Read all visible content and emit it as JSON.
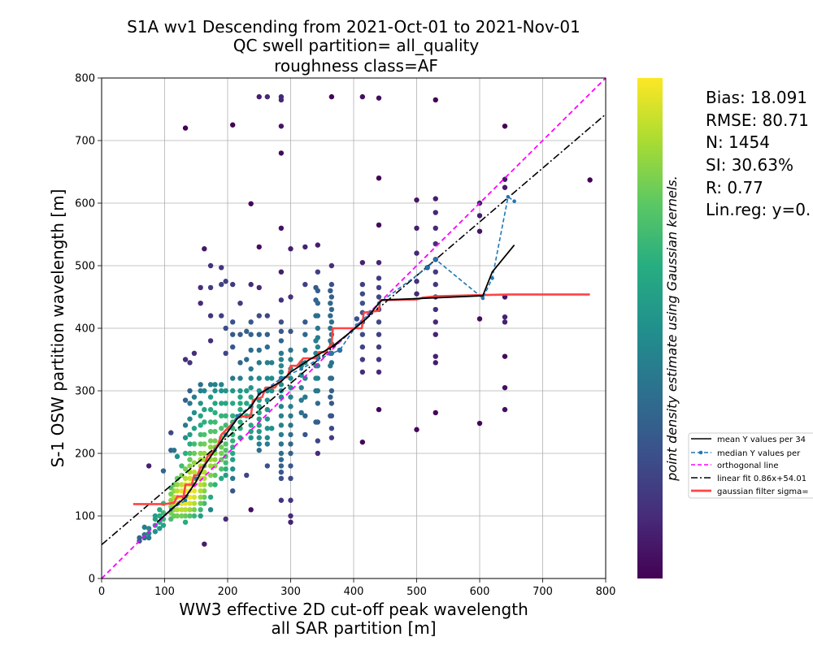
{
  "chart_data": {
    "type": "scatter",
    "title_lines": [
      "S1A wv1 Descending from 2021-Oct-01 to 2021-Nov-01",
      "QC swell partition= all_quality",
      "roughness class=AF"
    ],
    "xlabel_lines": [
      "WW3 effective 2D cut-off peak wavelength",
      "all SAR partition [m]"
    ],
    "ylabel": "S-1 OSW partition wavelength [m]",
    "xlim": [
      0,
      800
    ],
    "ylim": [
      0,
      800
    ],
    "xticks": [
      "0",
      "100",
      "200",
      "300",
      "400",
      "500",
      "600",
      "700",
      "800"
    ],
    "yticks": [
      "0",
      "100",
      "200",
      "300",
      "400",
      "500",
      "600",
      "700",
      "800"
    ],
    "grid": true,
    "colorbar_label": "point density estimate using Gaussian kernels.",
    "colorbar_colors": [
      "#440154",
      "#472c7a",
      "#3b518b",
      "#2c718e",
      "#21908d",
      "#27ad81",
      "#5cc863",
      "#aadc32",
      "#fde725"
    ],
    "stats": [
      "Bias: 18.091",
      "RMSE: 80.71",
      "N: 1454",
      "SI: 30.63%",
      "R: 0.77",
      "Lin.reg: y=0."
    ],
    "legend": [
      {
        "label": "mean Y values per 34",
        "color": "#000000",
        "style": "solid"
      },
      {
        "label": "median Y values per",
        "color": "#1f77b4",
        "style": "dashed-dot-marker"
      },
      {
        "label": "orthogonal line",
        "color": "#ff00ff",
        "style": "dashed"
      },
      {
        "label": "linear fit 0.86x+54.01",
        "color": "#000000",
        "style": "dashdot"
      },
      {
        "label": "gaussian filter sigma=",
        "color": "#ff4444",
        "style": "thick"
      }
    ],
    "linear_fit": {
      "slope": 0.86,
      "intercept": 54.01
    },
    "columns": [
      {
        "x": 60,
        "ys": [
          60,
          65
        ]
      },
      {
        "x": 68,
        "ys": [
          65,
          70,
          82
        ]
      },
      {
        "x": 75,
        "ys": [
          65,
          72,
          80,
          180
        ]
      },
      {
        "x": 85,
        "ys": [
          75,
          85,
          95,
          100
        ]
      },
      {
        "x": 92,
        "ys": [
          80,
          90,
          100,
          110
        ]
      },
      {
        "x": 98,
        "ys": [
          85,
          95,
          105,
          120,
          172
        ]
      },
      {
        "x": 110,
        "ys": [
          95,
          105,
          115,
          125,
          135,
          145,
          205,
          233
        ]
      },
      {
        "x": 115,
        "ys": [
          100,
          110,
          120,
          130,
          140,
          150,
          205
        ]
      },
      {
        "x": 120,
        "ys": [
          100,
          110,
          120,
          130,
          140,
          150,
          160,
          195
        ]
      },
      {
        "x": 127,
        "ys": [
          100,
          110,
          120,
          130,
          140,
          150,
          165,
          180
        ]
      },
      {
        "x": 133,
        "ys": [
          90,
          100,
          110,
          120,
          130,
          140,
          150,
          160,
          175,
          200,
          225,
          245,
          285,
          350,
          720
        ]
      },
      {
        "x": 140,
        "ys": [
          100,
          110,
          120,
          130,
          140,
          150,
          160,
          170,
          180,
          190,
          200,
          215,
          230,
          255,
          280,
          300,
          345
        ]
      },
      {
        "x": 147,
        "ys": [
          100,
          110,
          120,
          130,
          140,
          150,
          160,
          170,
          185,
          200,
          215,
          240,
          265,
          290,
          360
        ]
      },
      {
        "x": 157,
        "ys": [
          100,
          110,
          120,
          130,
          140,
          150,
          160,
          170,
          180,
          190,
          200,
          215,
          230,
          245,
          260,
          280,
          300,
          310,
          440,
          465
        ]
      },
      {
        "x": 163,
        "ys": [
          55,
          120,
          130,
          140,
          150,
          160,
          170,
          180,
          190,
          200,
          215,
          230,
          250,
          270,
          300,
          527
        ]
      },
      {
        "x": 173,
        "ys": [
          110,
          130,
          150,
          165,
          180,
          190,
          200,
          210,
          220,
          235,
          250,
          270,
          290,
          310,
          380,
          420,
          465,
          500
        ]
      },
      {
        "x": 180,
        "ys": [
          150,
          165,
          180,
          190,
          200,
          210,
          220,
          235,
          250,
          265,
          280,
          300,
          310
        ]
      },
      {
        "x": 190,
        "ys": [
          160,
          175,
          190,
          200,
          210,
          225,
          240,
          260,
          280,
          300,
          310,
          420,
          470,
          497
        ]
      },
      {
        "x": 197,
        "ys": [
          95,
          165,
          175,
          185,
          195,
          205,
          215,
          230,
          245,
          260,
          280,
          300,
          360,
          400,
          475
        ]
      },
      {
        "x": 208,
        "ys": [
          140,
          160,
          175,
          190,
          200,
          210,
          220,
          230,
          240,
          250,
          260,
          280,
          300,
          320,
          370,
          390,
          410,
          470,
          725
        ]
      },
      {
        "x": 220,
        "ys": [
          225,
          240,
          250,
          260,
          270,
          280,
          290,
          300,
          320,
          345,
          390,
          440
        ]
      },
      {
        "x": 230,
        "ys": [
          165,
          260,
          280,
          300,
          350,
          395
        ]
      },
      {
        "x": 237,
        "ys": [
          110,
          225,
          235,
          245,
          260,
          275,
          290,
          305,
          320,
          335,
          365,
          390,
          410,
          470,
          599
        ]
      },
      {
        "x": 250,
        "ys": [
          205,
          215,
          225,
          235,
          245,
          255,
          265,
          275,
          285,
          300,
          320,
          345,
          365,
          390,
          420,
          465,
          530,
          770
        ]
      },
      {
        "x": 263,
        "ys": [
          180,
          215,
          225,
          240,
          255,
          270,
          285,
          300,
          320,
          345,
          370,
          390,
          420,
          770
        ]
      },
      {
        "x": 270,
        "ys": [
          240,
          300,
          320,
          345
        ]
      },
      {
        "x": 285,
        "ys": [
          125,
          160,
          170,
          180,
          190,
          200,
          215,
          230,
          245,
          260,
          275,
          290,
          300,
          310,
          320,
          330,
          340,
          350,
          360,
          380,
          395,
          410,
          445,
          490,
          560,
          680,
          723,
          765,
          770
        ]
      },
      {
        "x": 300,
        "ys": [
          90,
          100,
          125,
          160,
          180,
          200,
          215,
          230,
          245,
          260,
          275,
          290,
          305,
          320,
          335,
          350,
          365,
          395,
          450,
          527
        ]
      },
      {
        "x": 317,
        "ys": [
          265,
          285,
          305,
          325,
          340,
          345
        ]
      },
      {
        "x": 323,
        "ys": [
          230,
          260,
          290,
          320,
          345,
          365,
          390,
          410,
          470,
          530
        ]
      },
      {
        "x": 340,
        "ys": [
          250,
          300,
          320,
          340,
          360,
          380,
          420,
          445,
          465
        ]
      },
      {
        "x": 343,
        "ys": [
          200,
          220,
          250,
          280,
          300,
          320,
          340,
          355,
          370,
          385,
          400,
          420,
          440,
          460,
          490,
          533
        ]
      },
      {
        "x": 363,
        "ys": [
          260,
          290,
          320,
          340,
          360,
          380,
          400,
          420,
          440,
          460
        ]
      },
      {
        "x": 365,
        "ys": [
          225,
          240,
          260,
          280,
          300,
          320,
          345,
          360,
          375,
          390,
          410,
          430,
          450,
          470,
          500,
          770
        ]
      },
      {
        "x": 378,
        "ys": [
          365
        ]
      },
      {
        "x": 405,
        "ys": [
          415
        ]
      },
      {
        "x": 414,
        "ys": [
          218,
          330,
          350,
          370,
          390,
          410,
          425,
          440,
          455,
          470,
          505,
          770
        ]
      },
      {
        "x": 427,
        "ys": [
          425
        ]
      },
      {
        "x": 440,
        "ys": [
          270,
          330,
          350,
          370,
          390,
          410,
          430,
          450,
          465,
          480,
          505,
          565,
          640,
          768
        ]
      },
      {
        "x": 500,
        "ys": [
          238,
          455,
          475,
          520,
          560,
          605
        ]
      },
      {
        "x": 517,
        "ys": [
          497
        ]
      },
      {
        "x": 530,
        "ys": [
          265,
          345,
          355,
          390,
          410,
          430,
          450,
          470,
          490,
          510,
          535,
          560,
          585,
          607,
          765
        ]
      },
      {
        "x": 600,
        "ys": [
          248,
          415,
          555,
          580,
          600
        ]
      },
      {
        "x": 640,
        "ys": [
          270,
          305,
          355,
          410,
          418,
          450,
          625,
          638,
          723
        ]
      },
      {
        "x": 775,
        "ys": [
          637
        ]
      }
    ],
    "mean_line": [
      [
        88,
        90
      ],
      [
        110,
        110
      ],
      [
        133,
        130
      ],
      [
        150,
        155
      ],
      [
        163,
        180
      ],
      [
        180,
        205
      ],
      [
        197,
        230
      ],
      [
        215,
        255
      ],
      [
        237,
        275
      ],
      [
        250,
        295
      ],
      [
        267,
        305
      ],
      [
        285,
        315
      ],
      [
        300,
        330
      ],
      [
        330,
        350
      ],
      [
        365,
        370
      ],
      [
        390,
        390
      ],
      [
        420,
        415
      ],
      [
        440,
        440
      ],
      [
        445,
        445
      ],
      [
        605,
        452
      ],
      [
        620,
        490
      ],
      [
        655,
        533
      ]
    ],
    "median_line": [
      [
        110,
        110
      ],
      [
        133,
        125
      ],
      [
        150,
        160
      ],
      [
        163,
        180
      ],
      [
        180,
        205
      ],
      [
        197,
        230
      ],
      [
        215,
        260
      ],
      [
        237,
        275
      ],
      [
        250,
        295
      ],
      [
        285,
        320
      ],
      [
        317,
        335
      ],
      [
        343,
        350
      ],
      [
        378,
        365
      ],
      [
        405,
        405
      ],
      [
        427,
        425
      ],
      [
        440,
        440
      ],
      [
        517,
        497
      ],
      [
        530,
        510
      ],
      [
        605,
        448
      ],
      [
        620,
        480
      ],
      [
        645,
        610
      ],
      [
        655,
        603
      ]
    ],
    "gauss_line": [
      [
        50,
        119
      ],
      [
        100,
        119
      ],
      [
        115,
        121
      ],
      [
        120,
        131
      ],
      [
        130,
        131
      ],
      [
        133,
        150
      ],
      [
        143,
        150
      ],
      [
        147,
        165
      ],
      [
        152,
        165
      ],
      [
        157,
        178
      ],
      [
        163,
        178
      ],
      [
        168,
        195
      ],
      [
        175,
        200
      ],
      [
        185,
        215
      ],
      [
        190,
        230
      ],
      [
        200,
        240
      ],
      [
        210,
        250
      ],
      [
        215,
        258
      ],
      [
        237,
        260
      ],
      [
        240,
        285
      ],
      [
        255,
        290
      ],
      [
        260,
        305
      ],
      [
        275,
        305
      ],
      [
        285,
        320
      ],
      [
        295,
        322
      ],
      [
        300,
        340
      ],
      [
        310,
        340
      ],
      [
        320,
        352
      ],
      [
        340,
        352
      ],
      [
        345,
        362
      ],
      [
        355,
        362
      ],
      [
        365,
        375
      ],
      [
        367,
        400
      ],
      [
        413,
        400
      ],
      [
        416,
        425
      ],
      [
        440,
        428
      ],
      [
        442,
        445
      ],
      [
        500,
        446
      ],
      [
        510,
        449
      ],
      [
        530,
        451
      ],
      [
        600,
        453
      ],
      [
        650,
        454
      ],
      [
        775,
        454
      ]
    ]
  }
}
